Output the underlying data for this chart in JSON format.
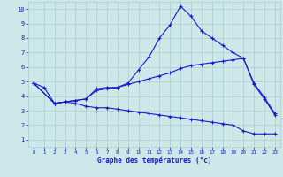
{
  "xlabel": "Graphe des températures (°c)",
  "xlim": [
    -0.5,
    23.5
  ],
  "ylim": [
    0.5,
    10.5
  ],
  "xticks": [
    0,
    1,
    2,
    3,
    4,
    5,
    6,
    7,
    8,
    9,
    10,
    11,
    12,
    13,
    14,
    15,
    16,
    17,
    18,
    19,
    20,
    21,
    22,
    23
  ],
  "yticks": [
    1,
    2,
    3,
    4,
    5,
    6,
    7,
    8,
    9,
    10
  ],
  "bg_color": "#cce8e8",
  "line_color": "#1a1acc",
  "grid_color": "#aacccc",
  "line1_x": [
    0,
    1,
    2,
    3,
    4,
    5,
    6,
    7,
    8,
    9,
    10,
    11,
    12,
    13,
    14,
    15,
    16,
    17,
    18,
    19,
    20,
    21,
    22,
    23
  ],
  "line1_y": [
    4.9,
    4.6,
    3.5,
    3.6,
    3.7,
    3.8,
    4.5,
    4.6,
    4.6,
    4.9,
    5.8,
    6.7,
    8.0,
    8.9,
    10.2,
    9.5,
    8.5,
    8.0,
    7.5,
    7.0,
    6.6,
    4.8,
    3.8,
    2.7
  ],
  "line2_x": [
    0,
    2,
    3,
    4,
    5,
    6,
    7,
    8,
    9,
    10,
    11,
    12,
    13,
    14,
    15,
    16,
    17,
    18,
    19,
    20,
    21,
    22,
    23
  ],
  "line2_y": [
    4.9,
    3.5,
    3.6,
    3.7,
    3.8,
    4.4,
    4.5,
    4.6,
    4.8,
    5.0,
    5.2,
    5.4,
    5.6,
    5.9,
    6.1,
    6.2,
    6.3,
    6.4,
    6.5,
    6.6,
    4.9,
    3.9,
    2.8
  ],
  "line3_x": [
    0,
    2,
    3,
    4,
    5,
    6,
    7,
    8,
    9,
    10,
    11,
    12,
    13,
    14,
    15,
    16,
    17,
    18,
    19,
    20,
    21,
    22,
    23
  ],
  "line3_y": [
    4.9,
    3.5,
    3.6,
    3.5,
    3.3,
    3.2,
    3.2,
    3.1,
    3.0,
    2.9,
    2.8,
    2.7,
    2.6,
    2.5,
    2.4,
    2.3,
    2.2,
    2.1,
    2.0,
    1.6,
    1.4,
    1.4,
    1.4
  ]
}
